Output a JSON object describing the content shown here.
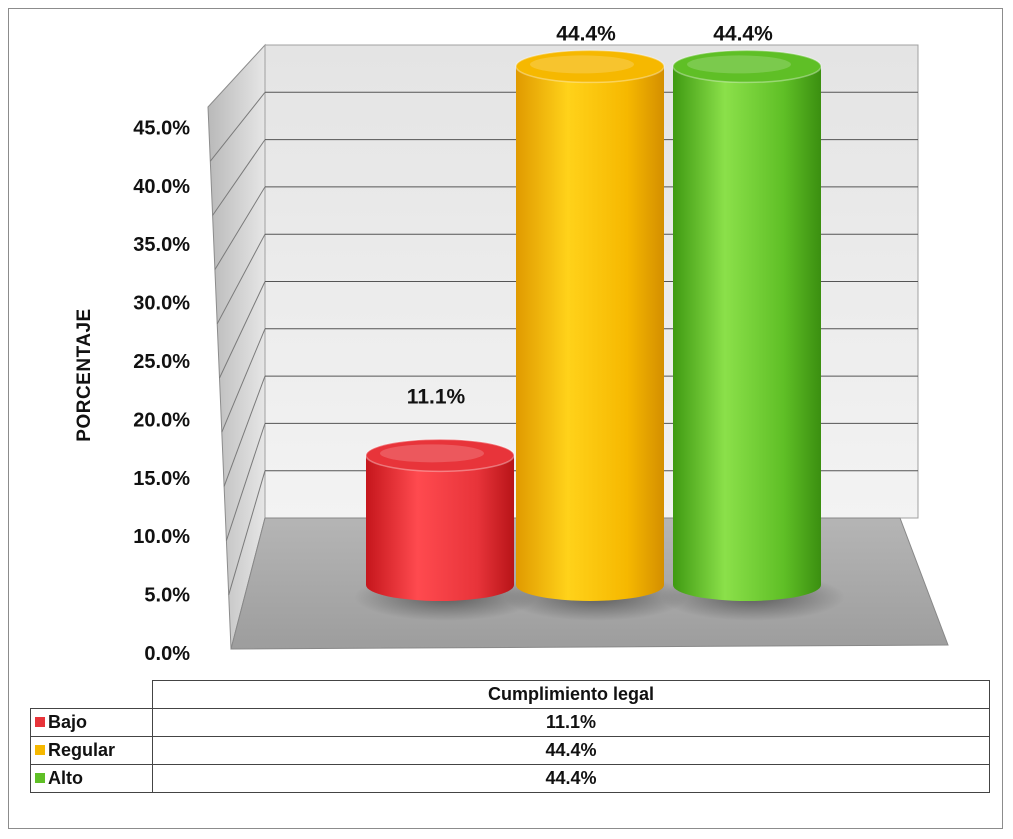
{
  "chart_data": {
    "type": "bar",
    "style": "3d-cylinder",
    "title": "",
    "xlabel": "",
    "ylabel": "PORCENTAJE",
    "ylim": [
      0,
      50
    ],
    "y_ticks": [
      "0.0%",
      "5.0%",
      "10.0%",
      "15.0%",
      "20.0%",
      "25.0%",
      "30.0%",
      "35.0%",
      "40.0%",
      "45.0%"
    ],
    "categories": [
      "Bajo",
      "Regular",
      "Alto"
    ],
    "values": [
      11.1,
      44.4,
      44.4
    ],
    "data_labels": [
      "11.1%",
      "44.4%",
      "44.4%"
    ],
    "colors": [
      "#e8343a",
      "#f6b800",
      "#5fbf26"
    ],
    "grid": true,
    "legend": "data-table-below",
    "table": {
      "series_header": "Cumplimiento legal",
      "rows": [
        {
          "label": "Bajo",
          "value": "11.1%"
        },
        {
          "label": "Regular",
          "value": "44.4%"
        },
        {
          "label": "Alto",
          "value": "44.4%"
        }
      ]
    }
  }
}
